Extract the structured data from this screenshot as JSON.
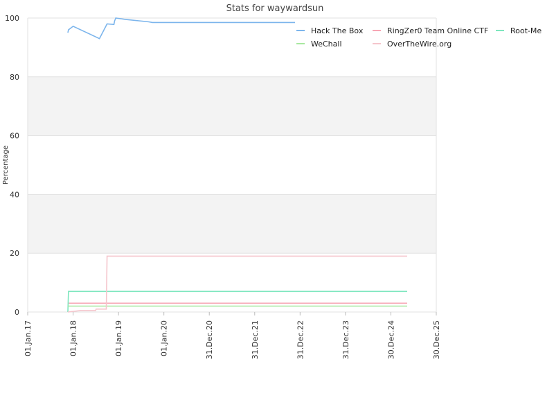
{
  "chart_data": {
    "type": "line",
    "title": "Stats for waywardsun",
    "xlabel": "",
    "ylabel": "Percentage",
    "ylim": [
      0,
      100
    ],
    "xlim": [
      "2017-01-01",
      "2025-12-30"
    ],
    "y_ticks": [
      "0",
      "20",
      "40",
      "60",
      "80",
      "100"
    ],
    "x_ticks": [
      "01.Jan.17",
      "01.Jan.18",
      "01.Jan.19",
      "01.Jan.20",
      "31.Dec.20",
      "31.Dec.21",
      "31.Dec.22",
      "31.Dec.23",
      "30.Dec.24",
      "30.Dec.25"
    ],
    "x_tick_dates": [
      "2017-01-01",
      "2018-01-01",
      "2019-01-01",
      "2020-01-01",
      "2020-12-31",
      "2021-12-31",
      "2022-12-31",
      "2023-12-31",
      "2024-12-30",
      "2025-12-30"
    ],
    "grid": "horizontal-bands",
    "legend_position": "top-right",
    "series": [
      {
        "name": "Hack The Box",
        "color": "#7cb5ec",
        "points": [
          [
            "2017-11-20",
            95
          ],
          [
            "2017-11-25",
            96
          ],
          [
            "2018-01-01",
            97.2
          ],
          [
            "2018-08-01",
            93
          ],
          [
            "2018-10-01",
            98
          ],
          [
            "2018-11-25",
            97.8
          ],
          [
            "2018-12-01",
            99
          ],
          [
            "2018-12-10",
            100
          ],
          [
            "2019-03-01",
            99.5
          ],
          [
            "2019-09-01",
            98.7
          ],
          [
            "2019-10-01",
            98.5
          ],
          [
            "2022-11-20",
            98.5
          ]
        ]
      },
      {
        "name": "RingZer0 Team Online CTF",
        "color": "#f7a6b4",
        "points": [
          [
            "2017-11-20",
            3
          ],
          [
            "2025-05-10",
            3
          ]
        ]
      },
      {
        "name": "Root-Me",
        "color": "#7ee6be",
        "points": [
          [
            "2017-11-20",
            0
          ],
          [
            "2017-11-25",
            7
          ],
          [
            "2025-05-10",
            7
          ]
        ]
      },
      {
        "name": "WeChall",
        "color": "#a8e8a0",
        "points": [
          [
            "2017-11-20",
            2
          ],
          [
            "2025-05-10",
            2
          ]
        ]
      },
      {
        "name": "OverTheWire.org",
        "color": "#f5c5cc",
        "points": [
          [
            "2017-11-20",
            0
          ],
          [
            "2018-03-01",
            0.5
          ],
          [
            "2018-07-01",
            0.5
          ],
          [
            "2018-07-05",
            1
          ],
          [
            "2018-09-25",
            1
          ],
          [
            "2018-10-01",
            19
          ],
          [
            "2025-05-10",
            19
          ]
        ]
      }
    ]
  }
}
